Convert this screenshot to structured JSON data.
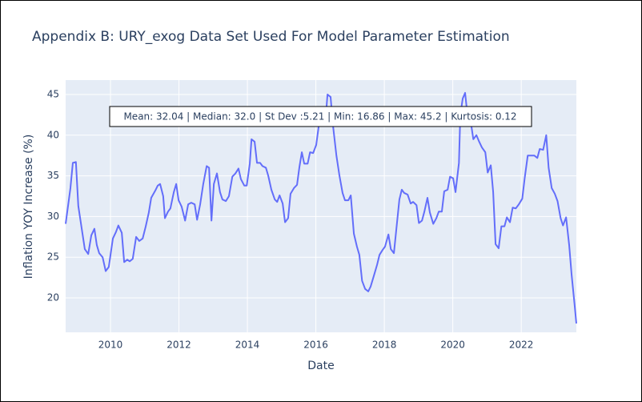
{
  "chart_data": {
    "type": "line",
    "title": "Appendix B: URY_exog Data Set Used For Model Parameter Estimation",
    "x_label": "Date",
    "y_label": "Inflation YOY Increase (%)",
    "annotation": "Mean: 32.04 | Median: 32.0 | St Dev :5.21 | Min: 16.86 | Max: 45.2 | Kurtosis: 0.12",
    "xlim": [
      2008.69,
      2023.61
    ],
    "ylim": [
      15.77,
      46.77
    ],
    "xticks": [
      2010,
      2012,
      2014,
      2016,
      2018,
      2020,
      2022
    ],
    "yticks": [
      20,
      25,
      30,
      35,
      40,
      45
    ],
    "grid": true,
    "series": [
      {
        "color": "#636efa",
        "x": [
          2008.69,
          2008.83,
          2008.9,
          2008.99,
          2009.06,
          2009.16,
          2009.25,
          2009.35,
          2009.44,
          2009.53,
          2009.6,
          2009.67,
          2009.77,
          2009.86,
          2009.95,
          2010.07,
          2010.16,
          2010.23,
          2010.33,
          2010.4,
          2010.49,
          2010.56,
          2010.65,
          2010.75,
          2010.84,
          2010.94,
          2011.03,
          2011.12,
          2011.19,
          2011.31,
          2011.38,
          2011.45,
          2011.54,
          2011.59,
          2011.68,
          2011.75,
          2011.85,
          2011.92,
          2011.99,
          2012.08,
          2012.18,
          2012.27,
          2012.36,
          2012.46,
          2012.53,
          2012.62,
          2012.71,
          2012.81,
          2012.88,
          2012.95,
          2013.02,
          2013.11,
          2013.2,
          2013.27,
          2013.37,
          2013.46,
          2013.56,
          2013.65,
          2013.74,
          2013.81,
          2013.91,
          2013.98,
          2014.07,
          2014.12,
          2014.21,
          2014.28,
          2014.37,
          2014.44,
          2014.54,
          2014.61,
          2014.7,
          2014.8,
          2014.87,
          2014.94,
          2015.03,
          2015.1,
          2015.19,
          2015.26,
          2015.36,
          2015.45,
          2015.52,
          2015.59,
          2015.66,
          2015.76,
          2015.83,
          2015.92,
          2016.01,
          2016.08,
          2016.18,
          2016.27,
          2016.34,
          2016.43,
          2016.5,
          2016.6,
          2016.69,
          2016.78,
          2016.85,
          2016.95,
          2017.02,
          2017.11,
          2017.2,
          2017.27,
          2017.35,
          2017.44,
          2017.53,
          2017.6,
          2017.7,
          2017.79,
          2017.86,
          2017.95,
          2018.02,
          2018.12,
          2018.19,
          2018.28,
          2018.35,
          2018.44,
          2018.51,
          2018.58,
          2018.68,
          2018.77,
          2018.84,
          2018.94,
          2019.01,
          2019.1,
          2019.17,
          2019.26,
          2019.33,
          2019.43,
          2019.52,
          2019.59,
          2019.68,
          2019.75,
          2019.85,
          2019.92,
          2020.01,
          2020.08,
          2020.18,
          2020.22,
          2020.29,
          2020.36,
          2020.43,
          2020.53,
          2020.6,
          2020.69,
          2020.76,
          2020.85,
          2020.95,
          2021.02,
          2021.11,
          2021.18,
          2021.25,
          2021.34,
          2021.42,
          2021.51,
          2021.58,
          2021.67,
          2021.75,
          2021.84,
          2021.93,
          2022.03,
          2022.1,
          2022.19,
          2022.29,
          2022.38,
          2022.47,
          2022.54,
          2022.64,
          2022.73,
          2022.8,
          2022.89,
          2022.98,
          2023.06,
          2023.15,
          2023.22,
          2023.31,
          2023.4,
          2023.47,
          2023.56,
          2023.61
        ],
        "values": [
          29.1,
          33.5,
          36.6,
          36.7,
          31.3,
          28.5,
          26,
          25.4,
          27.7,
          28.5,
          26.5,
          25.5,
          25,
          23.3,
          23.8,
          27.3,
          28.1,
          28.9,
          28,
          24.4,
          24.7,
          24.5,
          24.8,
          27.5,
          27,
          27.3,
          28.8,
          30.5,
          32.3,
          33.2,
          33.8,
          34,
          32.5,
          29.8,
          30.6,
          31,
          33,
          34,
          32,
          31.2,
          29.5,
          31.5,
          31.7,
          31.5,
          29.6,
          31.5,
          34,
          36.2,
          36,
          29.5,
          34,
          35.3,
          33,
          32.1,
          31.9,
          32.5,
          34.9,
          35.3,
          35.9,
          34.6,
          33.8,
          33.8,
          36.5,
          39.5,
          39.2,
          36.6,
          36.6,
          36.2,
          36,
          35,
          33.3,
          32.1,
          31.8,
          32.6,
          31.6,
          29.3,
          29.8,
          32.8,
          33.5,
          33.9,
          36.1,
          37.9,
          36.5,
          36.5,
          37.9,
          37.8,
          38.8,
          41,
          42.5,
          41.2,
          45,
          44.7,
          41.2,
          37.5,
          35,
          32.9,
          32,
          32,
          32.6,
          27.9,
          26.3,
          25.3,
          22.1,
          21.1,
          20.8,
          21.4,
          22.8,
          24.1,
          25.3,
          25.9,
          26.3,
          27.8,
          26,
          25.5,
          28.4,
          32.1,
          33.3,
          32.9,
          32.7,
          31.6,
          31.8,
          31.4,
          29.2,
          29.5,
          30.6,
          32.3,
          30.5,
          29.1,
          29.8,
          30.6,
          30.6,
          33.1,
          33.3,
          34.9,
          34.7,
          33,
          36.6,
          42.5,
          44.5,
          45.2,
          42.4,
          41.5,
          39.5,
          40,
          39.3,
          38.5,
          37.9,
          35.4,
          36.3,
          33,
          26.6,
          26.1,
          28.8,
          28.8,
          29.9,
          29.3,
          31.1,
          31,
          31.5,
          32.2,
          34.7,
          37.5,
          37.5,
          37.5,
          37.2,
          38.3,
          38.2,
          40,
          36,
          33.5,
          32.8,
          31.9,
          29.8,
          28.9,
          29.9,
          26.5,
          22.9,
          19.1,
          16.86
        ]
      }
    ]
  }
}
